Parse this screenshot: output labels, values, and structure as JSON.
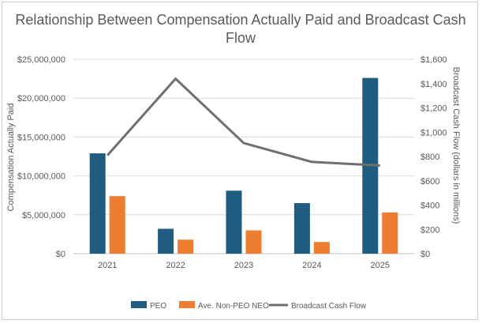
{
  "chart_data": {
    "type": "bar",
    "title_lines": [
      "Relationship Between Compensation Actually Paid and Broadcast Cash",
      "Flow"
    ],
    "categories": [
      "2021",
      "2022",
      "2023",
      "2024",
      "2025"
    ],
    "series": [
      {
        "name": "PEO",
        "type": "bar",
        "axis": "left",
        "color": "#1f5c80",
        "values": [
          12900000,
          3200000,
          8100000,
          6500000,
          22600000
        ]
      },
      {
        "name": "Ave. Non-PEO NEO",
        "type": "bar",
        "axis": "left",
        "color": "#ed7d31",
        "values": [
          7400000,
          1800000,
          3000000,
          1500000,
          5300000
        ]
      },
      {
        "name": "Broadcast Cash Flow",
        "type": "line",
        "axis": "right",
        "color": "#6f6f6f",
        "values": [
          810,
          1440,
          910,
          755,
          725
        ]
      }
    ],
    "ylabel": "Compensation Actually Paid",
    "y2label": "Broadcast Cash Flow (dollars in millions)",
    "ylim": [
      0,
      25000000
    ],
    "y2lim": [
      0,
      1600
    ],
    "yticks": [
      {
        "value": 0,
        "label": "$0"
      },
      {
        "value": 5000000,
        "label": "$5,000,000"
      },
      {
        "value": 10000000,
        "label": "$10,000,000"
      },
      {
        "value": 15000000,
        "label": "$15,000,000"
      },
      {
        "value": 20000000,
        "label": "$20,000,000"
      },
      {
        "value": 25000000,
        "label": "$25,000,000"
      }
    ],
    "y2ticks": [
      {
        "value": 0,
        "label": "$0"
      },
      {
        "value": 200,
        "label": "$200"
      },
      {
        "value": 400,
        "label": "$400"
      },
      {
        "value": 600,
        "label": "$600"
      },
      {
        "value": 800,
        "label": "$800"
      },
      {
        "value": 1000,
        "label": "$1,000"
      },
      {
        "value": 1200,
        "label": "$1,200"
      },
      {
        "value": 1400,
        "label": "$1,400"
      },
      {
        "value": 1600,
        "label": "$1,600"
      }
    ],
    "grid": true,
    "legend_position": "bottom"
  }
}
